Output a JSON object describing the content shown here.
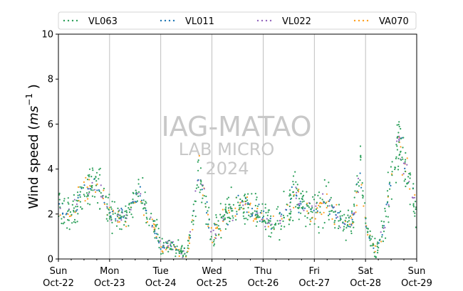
{
  "chart_data": {
    "type": "scatter",
    "title": "",
    "ylabel": "Wind speed ($ms^{-1}$ )",
    "ylabel_main": "Wind speed (",
    "ylabel_unit": "ms",
    "ylabel_exp": "−1",
    "ylabel_close": " )",
    "ylim": [
      0,
      10
    ],
    "yticks": [
      "0",
      "2",
      "4",
      "6",
      "8",
      "10"
    ],
    "xlim": [
      "2023-10-22",
      "2023-10-29"
    ],
    "xticks": [
      {
        "day": "Sun",
        "date": "Oct-22"
      },
      {
        "day": "Mon",
        "date": "Oct-23"
      },
      {
        "day": "Tue",
        "date": "Oct-24"
      },
      {
        "day": "Wed",
        "date": "Oct-25"
      },
      {
        "day": "Thu",
        "date": "Oct-26"
      },
      {
        "day": "Fri",
        "date": "Oct-27"
      },
      {
        "day": "Sat",
        "date": "Oct-28"
      },
      {
        "day": "Sun",
        "date": "Oct-29"
      }
    ],
    "grid": "vertical",
    "legend_position": "top",
    "series": [
      {
        "name": "VL063",
        "color": "#2ca05a"
      },
      {
        "name": "VL011",
        "color": "#1f77b4"
      },
      {
        "name": "VL022",
        "color": "#9467bd"
      },
      {
        "name": "VA070",
        "color": "#ff9f1c"
      }
    ],
    "profile_days": [
      0,
      0.1,
      0.25,
      0.5,
      0.75,
      1.0,
      1.3,
      1.6,
      1.9,
      2.0,
      2.3,
      2.5,
      2.6,
      2.75,
      3.0,
      3.3,
      3.6,
      3.8,
      4.0,
      4.3,
      4.6,
      4.9,
      5.0,
      5.3,
      5.6,
      5.75,
      5.9,
      6.0,
      6.2,
      6.35,
      6.5,
      6.65,
      6.75,
      6.9,
      7.0
    ],
    "profile_speed": [
      2.3,
      2.2,
      2.0,
      3.0,
      3.4,
      2.0,
      1.8,
      2.8,
      1.2,
      0.6,
      0.5,
      0.1,
      1.5,
      4.0,
      1.0,
      2.0,
      2.4,
      2.0,
      1.8,
      1.5,
      2.8,
      2.2,
      2.2,
      2.5,
      1.5,
      1.8,
      4.0,
      1.5,
      0.3,
      1.4,
      3.5,
      5.5,
      4.2,
      3.0,
      1.8
    ]
  },
  "watermark": {
    "line1": "IAG-MATAO",
    "line2": "LAB MICRO",
    "line3": "2024"
  }
}
